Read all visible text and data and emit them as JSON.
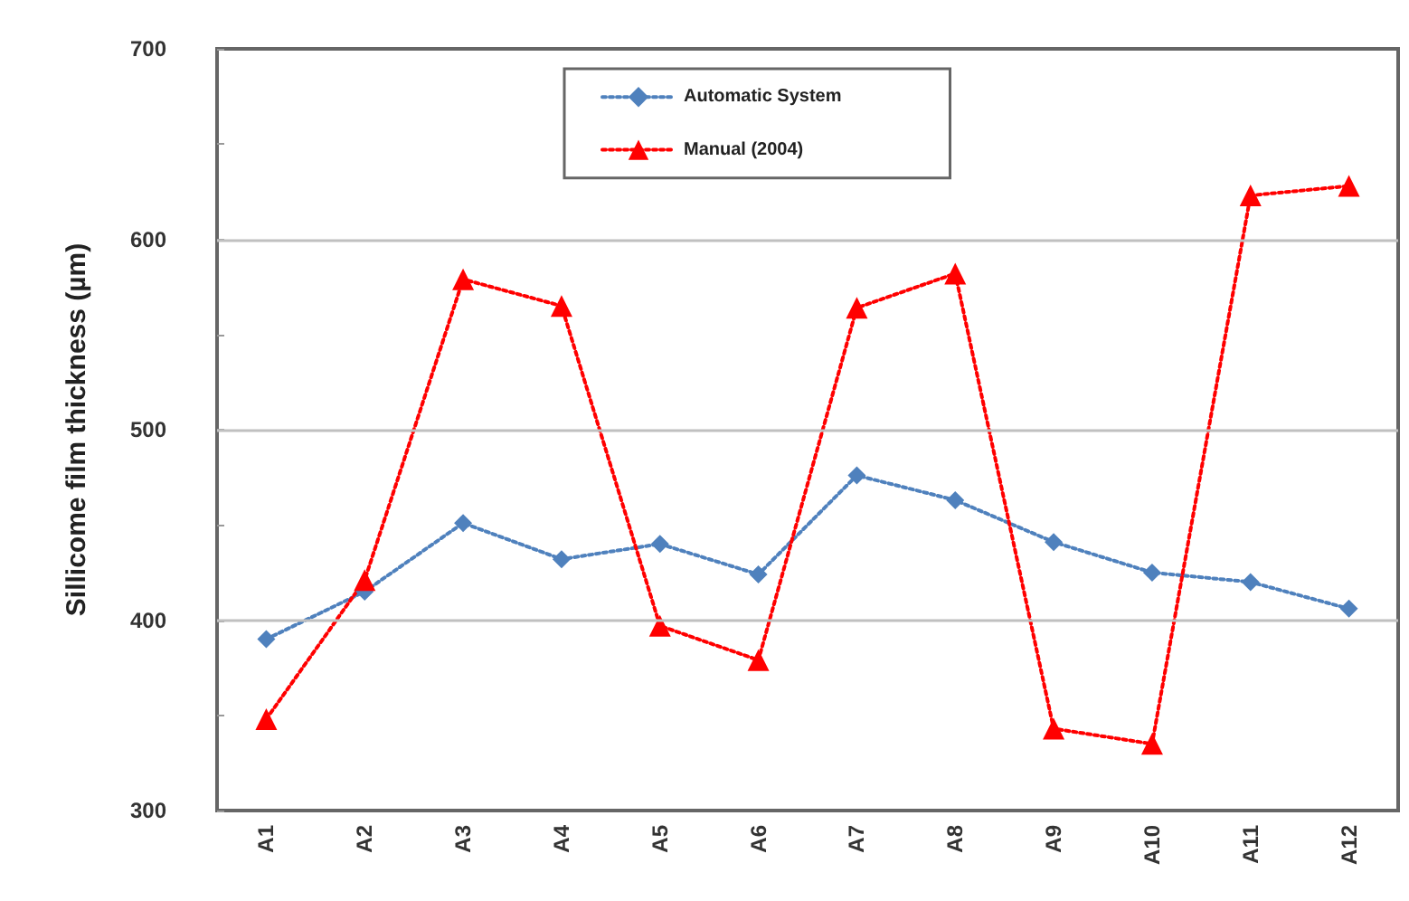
{
  "chart_data": {
    "type": "line",
    "ylabel": "Sillicome film thickness (µm)",
    "categories": [
      "A1",
      "A2",
      "A3",
      "A4",
      "A5",
      "A6",
      "A7",
      "A8",
      "A9",
      "A10",
      "A11",
      "A12"
    ],
    "series": [
      {
        "name": "Automatic System",
        "color": "#4f81bd",
        "marker": "diamond",
        "values": [
          390,
          415,
          451,
          432,
          440,
          424,
          476,
          463,
          441,
          425,
          420,
          406
        ]
      },
      {
        "name": "Manual (2004)",
        "color": "#ff0000",
        "marker": "triangle",
        "values": [
          348,
          421,
          579,
          565,
          397,
          379,
          564,
          582,
          343,
          335,
          623,
          628
        ]
      }
    ],
    "ylim": [
      300,
      700
    ],
    "yticks": [
      300,
      {
        "value": 350,
        "label": null
      },
      400,
      {
        "value": 450,
        "label": null
      },
      500,
      {
        "value": 550,
        "label": null
      },
      600,
      {
        "value": 650,
        "label": null
      },
      700
    ],
    "grid": "y",
    "legend": "top",
    "line_style": "dotted"
  }
}
